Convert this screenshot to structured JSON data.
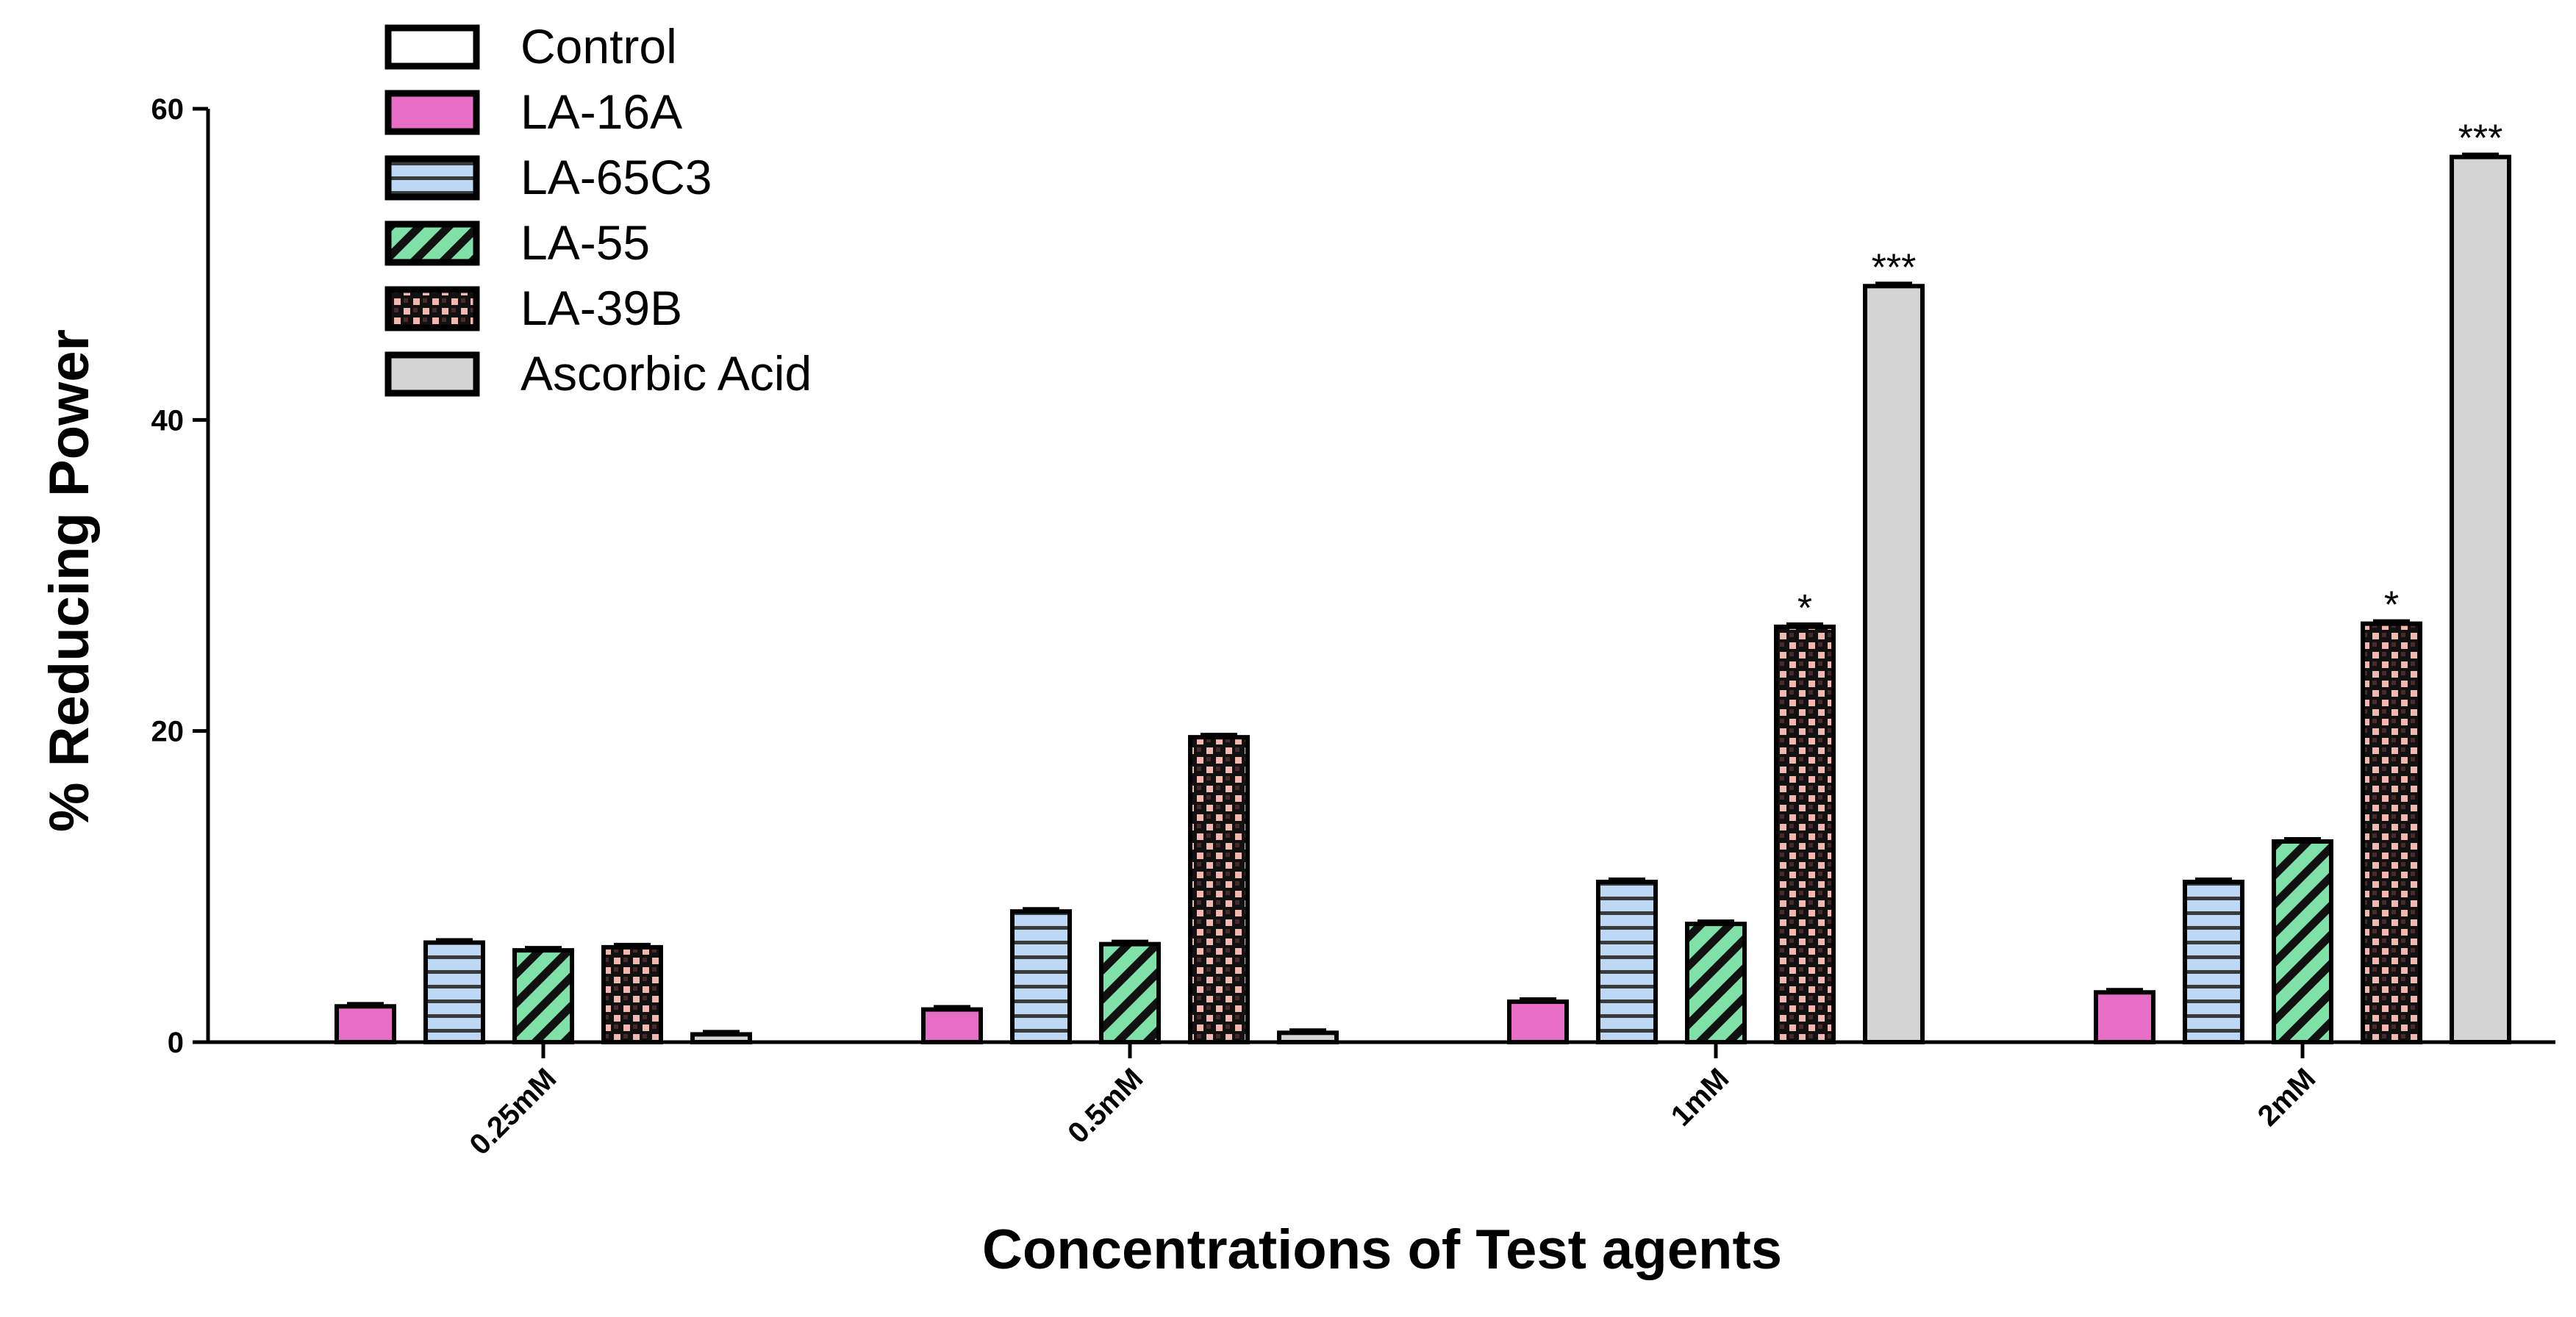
{
  "chart_data": {
    "type": "bar",
    "title": "",
    "xlabel": "Concentrations of Test agents",
    "ylabel": "% Reducing Power",
    "ylim": [
      0,
      60
    ],
    "yticks": [
      0,
      20,
      40,
      60
    ],
    "grid": false,
    "legend_position": "top-left",
    "categories": [
      "0.25mM",
      "0.5mM",
      "1mM",
      "2mM"
    ],
    "series": [
      {
        "name": "Control",
        "color": "#ffffff",
        "pattern": "none",
        "values": [
          null,
          null,
          null,
          null
        ],
        "significance": [
          "",
          "",
          "",
          ""
        ]
      },
      {
        "name": "LA-16A",
        "color": "#e86dc6",
        "pattern": "solid",
        "values": [
          2.3,
          2.1,
          2.6,
          3.2
        ],
        "significance": [
          "",
          "",
          "",
          ""
        ]
      },
      {
        "name": "LA-65C3",
        "color": "#bcd8f4",
        "pattern": "horizontal",
        "values": [
          6.4,
          8.4,
          10.3,
          10.3
        ],
        "significance": [
          "",
          "",
          "",
          ""
        ]
      },
      {
        "name": "LA-55",
        "color": "#7fe0a8",
        "pattern": "diagonal",
        "values": [
          5.9,
          6.3,
          7.6,
          12.9
        ],
        "significance": [
          "",
          "",
          "",
          ""
        ]
      },
      {
        "name": "LA-39B",
        "color": "#f2b8b0",
        "pattern": "crosshatch",
        "values": [
          6.1,
          19.6,
          26.7,
          26.9
        ],
        "significance": [
          "",
          "",
          "*",
          "*"
        ]
      },
      {
        "name": "Ascorbic Acid",
        "color": "#d4d4d4",
        "pattern": "solid",
        "values": [
          0.5,
          0.6,
          48.6,
          56.9
        ],
        "significance": [
          "",
          "",
          "***",
          "***"
        ]
      }
    ]
  }
}
